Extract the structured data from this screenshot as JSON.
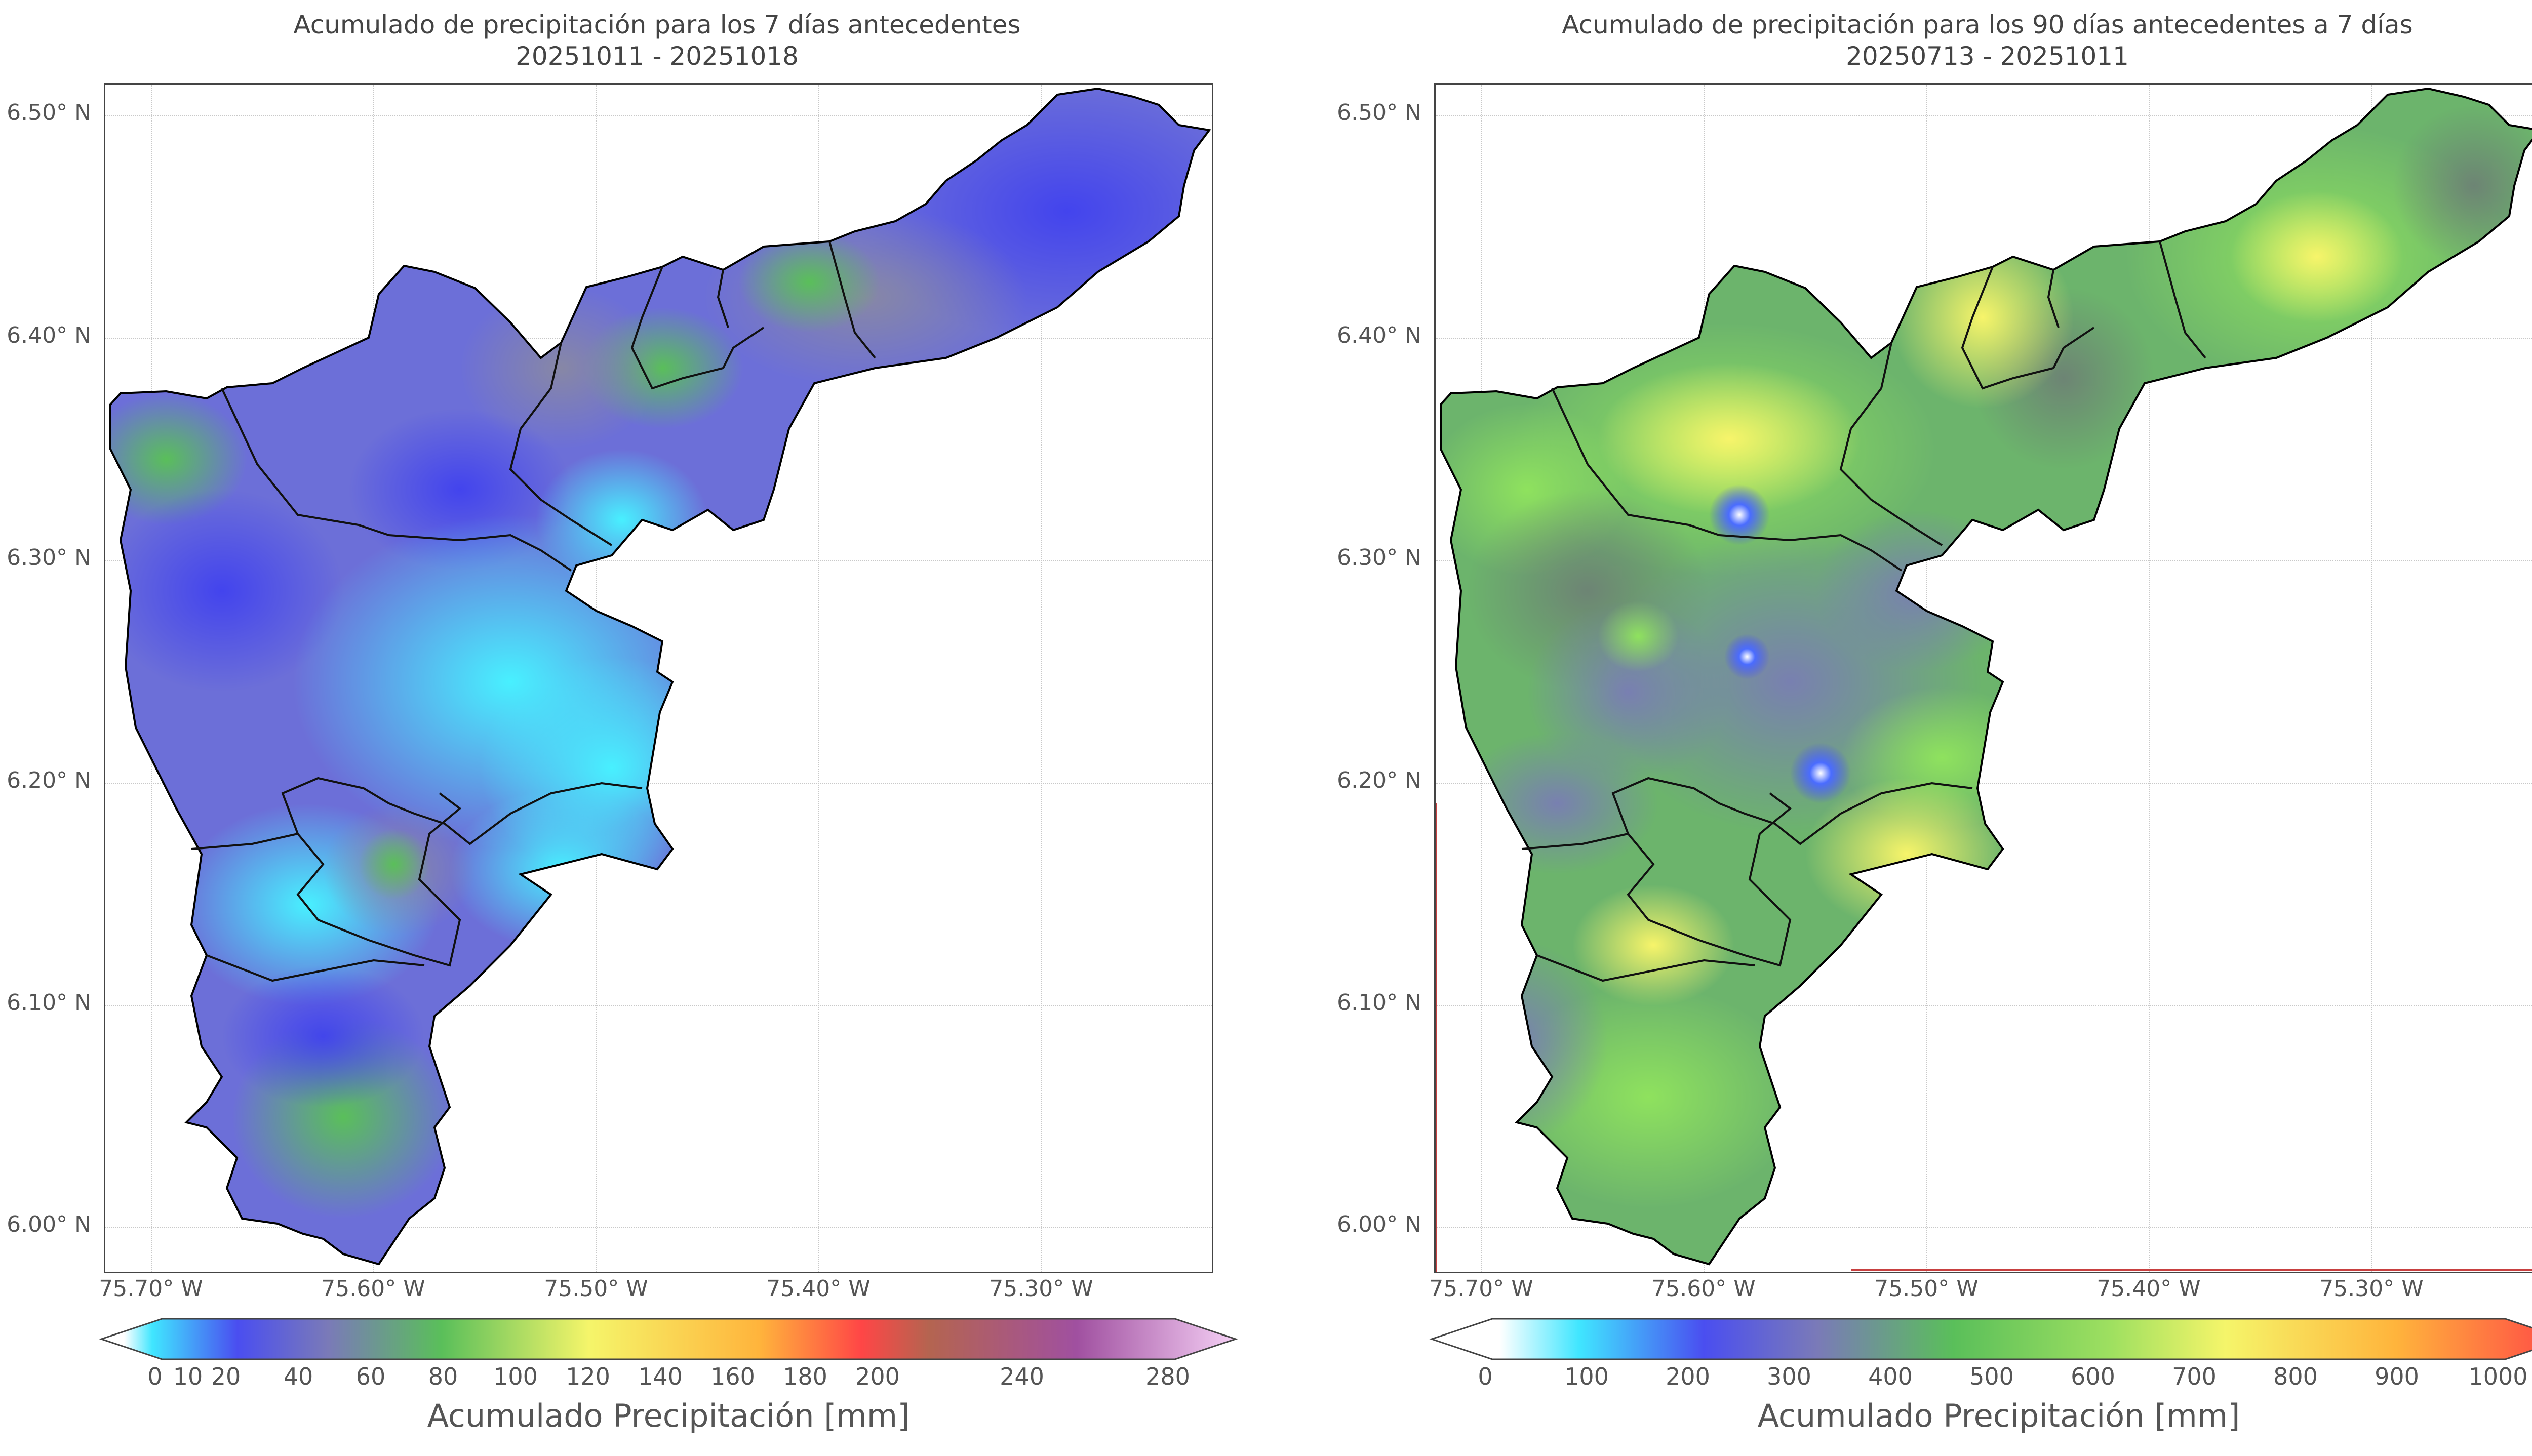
{
  "left_map": {
    "title": "Acumulado de precipitación para los 7 días antecedentes",
    "subtitle": "20251011 - 20251018",
    "y_ticks": [
      "6.50° N",
      "6.40° N",
      "6.30° N",
      "6.20° N",
      "6.10° N",
      "6.00° N"
    ],
    "x_ticks": [
      "75.70° W",
      "75.60° W",
      "75.50° W",
      "75.40° W",
      "75.30° W"
    ],
    "colorbar": {
      "ticks": [
        "0",
        "10",
        "20",
        "40",
        "60",
        "80",
        "100",
        "120",
        "140",
        "160",
        "180",
        "200",
        "240",
        "280"
      ],
      "label": "Acumulado Precipitación [mm]",
      "colors": [
        "#ffffff",
        "#40e6ff",
        "#4a4ef0",
        "#7a7ab8",
        "#5abf5a",
        "#f5f56a",
        "#ffb43c",
        "#ff4646",
        "#b46450",
        "#a050a0",
        "#f5d0f5"
      ]
    }
  },
  "right_map": {
    "title": "Acumulado de precipitación para los 90 días antecedentes a 7 días",
    "subtitle": "20250713 - 20251011",
    "y_ticks": [
      "6.50° N",
      "6.40° N",
      "6.30° N",
      "6.20° N",
      "6.10° N",
      "6.00° N"
    ],
    "x_ticks": [
      "75.70° W",
      "75.60° W",
      "75.50° W",
      "75.40° W",
      "75.30° W"
    ],
    "colorbar": {
      "ticks": [
        "0",
        "100",
        "200",
        "300",
        "400",
        "500",
        "600",
        "700",
        "800",
        "900",
        "1000"
      ],
      "label": "Acumulado Precipitación [mm]",
      "colors": [
        "#ffffff",
        "#40e6ff",
        "#4a4ef0",
        "#7a7ab8",
        "#5abf5a",
        "#9fe060",
        "#f5f56a",
        "#ffb43c",
        "#ff4646"
      ]
    }
  }
}
